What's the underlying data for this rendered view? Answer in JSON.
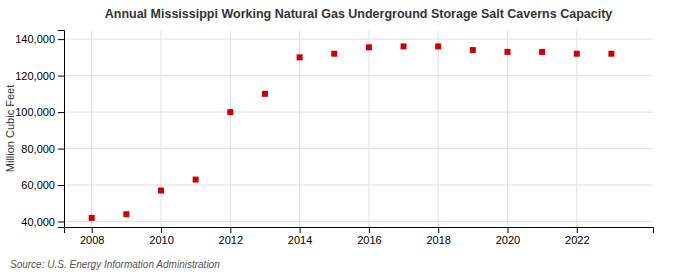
{
  "chart_data": {
    "type": "scatter",
    "title": "Annual Mississippi Working Natural Gas Underground Storage Salt Caverns Capacity",
    "y_label": "Million Cubic Feet",
    "annotations": [
      "Source: U.S. Energy Information Administration"
    ],
    "x": [
      2008,
      2009,
      2010,
      2011,
      2012,
      2013,
      2014,
      2015,
      2016,
      2017,
      2018,
      2019,
      2020,
      2021,
      2022,
      2023
    ],
    "values": [
      42000,
      44000,
      57000,
      63000,
      100000,
      110000,
      130000,
      132000,
      135500,
      136000,
      136000,
      134000,
      133000,
      133000,
      132000,
      132000
    ],
    "color": "#cc0000",
    "marker": "square",
    "xlim": [
      2007.2,
      2024.2
    ],
    "xticks": [
      2008,
      2010,
      2012,
      2014,
      2016,
      2018,
      2020,
      2022
    ],
    "ylim": [
      37000,
      145000
    ],
    "yticks": [
      {
        "value": 40000,
        "label": "40,000"
      },
      {
        "value": 60000,
        "label": "60,000"
      },
      {
        "value": 80000,
        "label": "80,000"
      },
      {
        "value": 100000,
        "label": "100,000"
      },
      {
        "value": 120000,
        "label": "120,000"
      },
      {
        "value": 140000,
        "label": "140,000"
      }
    ],
    "grid": true
  }
}
